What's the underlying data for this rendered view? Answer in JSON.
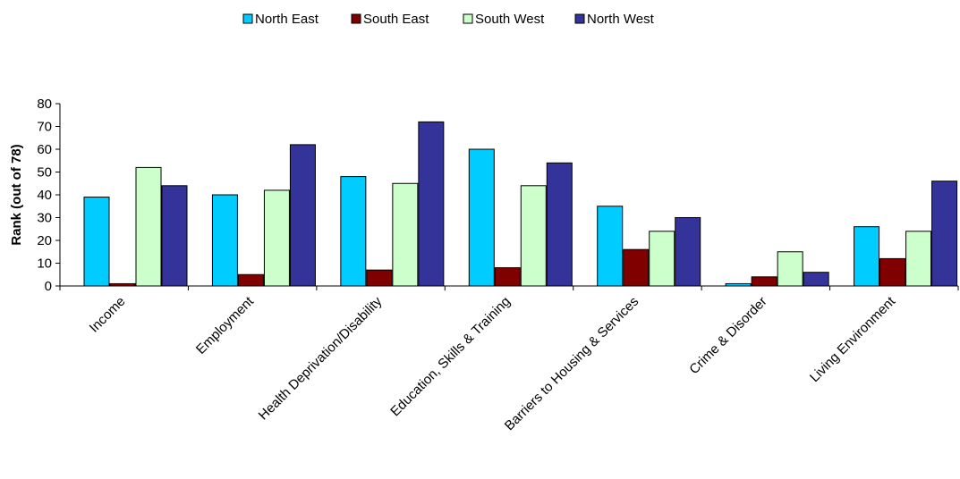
{
  "chart_data": {
    "type": "bar",
    "ylabel": "Rank (out of 78)",
    "xlabel": "",
    "ylim": [
      0,
      80
    ],
    "yticks": [
      0,
      10,
      20,
      30,
      40,
      50,
      60,
      70,
      80
    ],
    "grid": false,
    "legend_position": "top-center",
    "categories": [
      "Income",
      "Employment",
      "Health Deprivation/Disability",
      "Education, Skills & Training",
      "Barriers to Housing & Services",
      "Crime & Disorder",
      "Living Environment"
    ],
    "series": [
      {
        "name": "North East",
        "color": "#00ccff",
        "values": [
          39,
          40,
          48,
          60,
          35,
          1,
          26
        ]
      },
      {
        "name": "South East",
        "color": "#800000",
        "values": [
          1,
          5,
          7,
          8,
          16,
          4,
          12
        ]
      },
      {
        "name": "South West",
        "color": "#ccffcc",
        "values": [
          52,
          42,
          45,
          44,
          24,
          15,
          24
        ]
      },
      {
        "name": "North West",
        "color": "#333399",
        "values": [
          44,
          62,
          72,
          54,
          30,
          6,
          46
        ]
      }
    ]
  }
}
